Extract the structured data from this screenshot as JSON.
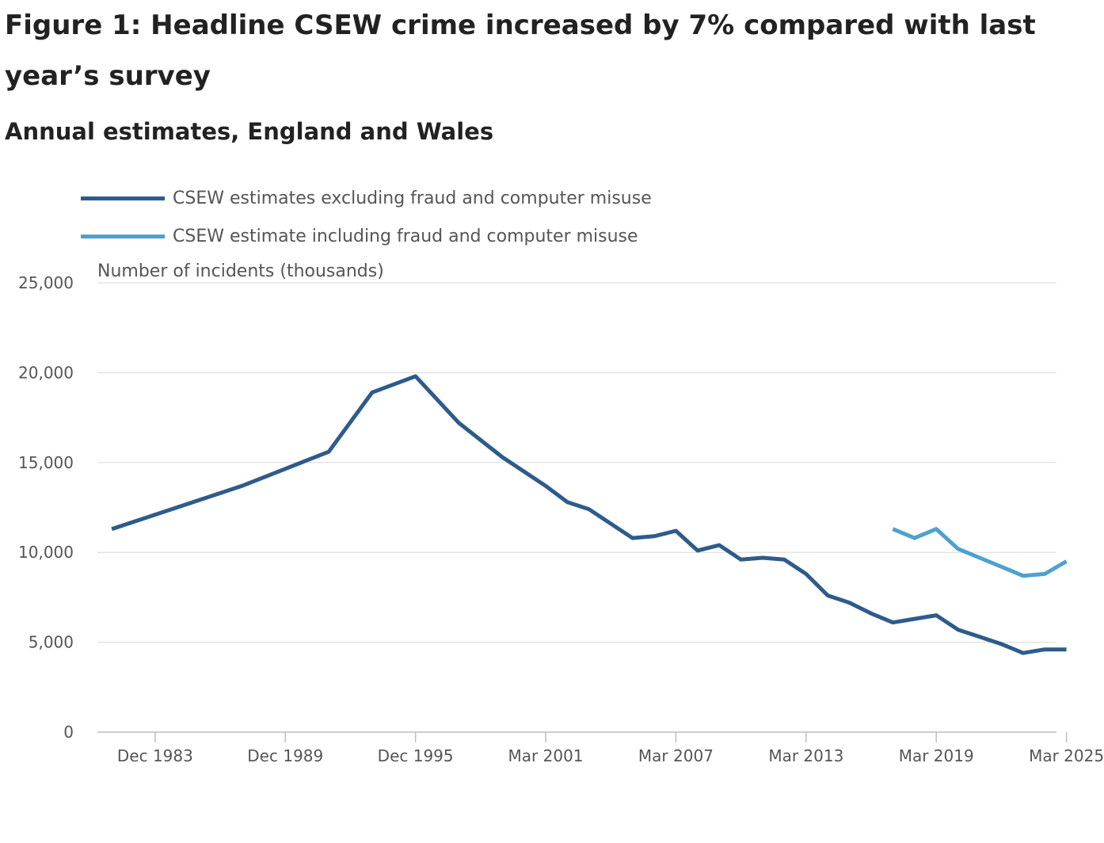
{
  "header": {
    "title": "Figure 1: Headline CSEW crime increased by 7% compared with last year’s survey",
    "subtitle": "Annual estimates, England and Wales"
  },
  "legend": [
    {
      "label": "CSEW estimates excluding fraud and computer misuse",
      "color": "#2e5b8a"
    },
    {
      "label": "CSEW estimate including fraud and computer misuse",
      "color": "#4ea1cf"
    }
  ],
  "chart_data": {
    "type": "line",
    "title": "Figure 1: Headline CSEW crime increased by 7% compared with last year’s survey",
    "subtitle": "Annual estimates, England and Wales",
    "xlabel": "",
    "ylabel": "Number of incidents (thousands)",
    "ylim": [
      0,
      25000
    ],
    "yticks": [
      0,
      5000,
      10000,
      15000,
      20000,
      25000
    ],
    "ytick_labels": [
      "0",
      "5,000",
      "10,000",
      "15,000",
      "20,000",
      "25,000"
    ],
    "xlim": [
      1981.3,
      2025.5
    ],
    "xticks": [
      {
        "label": "Dec 1983",
        "x": 1983.96
      },
      {
        "label": "Dec 1989",
        "x": 1989.96
      },
      {
        "label": "Dec 1995",
        "x": 1995.96
      },
      {
        "label": "Mar 2001",
        "x": 2001.96
      },
      {
        "label": "Mar 2007",
        "x": 2007.96
      },
      {
        "label": "Mar 2013",
        "x": 2013.96
      },
      {
        "label": "Mar 2019",
        "x": 2019.96
      },
      {
        "label": "Mar 2025",
        "x": 2025.96
      }
    ],
    "grid": true,
    "legend_position": "top-left",
    "series": [
      {
        "name": "CSEW estimates excluding fraud and computer misuse",
        "color": "#2e5b8a",
        "points": [
          {
            "x": 1981.96,
            "y": 11300
          },
          {
            "x": 1983.96,
            "y": 12100
          },
          {
            "x": 1987.96,
            "y": 13700
          },
          {
            "x": 1991.96,
            "y": 15600
          },
          {
            "x": 1993.96,
            "y": 18900
          },
          {
            "x": 1995.96,
            "y": 19800
          },
          {
            "x": 1997.96,
            "y": 17200
          },
          {
            "x": 1999.96,
            "y": 15300
          },
          {
            "x": 2001.96,
            "y": 13700
          },
          {
            "x": 2002.96,
            "y": 12800
          },
          {
            "x": 2003.96,
            "y": 12400
          },
          {
            "x": 2004.96,
            "y": 11600
          },
          {
            "x": 2005.96,
            "y": 10800
          },
          {
            "x": 2006.96,
            "y": 10900
          },
          {
            "x": 2007.96,
            "y": 11200
          },
          {
            "x": 2008.96,
            "y": 10100
          },
          {
            "x": 2009.96,
            "y": 10400
          },
          {
            "x": 2010.96,
            "y": 9600
          },
          {
            "x": 2011.96,
            "y": 9700
          },
          {
            "x": 2012.96,
            "y": 9600
          },
          {
            "x": 2013.96,
            "y": 8800
          },
          {
            "x": 2014.96,
            "y": 7600
          },
          {
            "x": 2015.96,
            "y": 7200
          },
          {
            "x": 2016.96,
            "y": 6600
          },
          {
            "x": 2017.96,
            "y": 6100
          },
          {
            "x": 2018.96,
            "y": 6300
          },
          {
            "x": 2019.96,
            "y": 6500
          },
          {
            "x": 2020.96,
            "y": 5700
          },
          {
            "x": 2021.96,
            "y": 5300
          },
          {
            "x": 2022.96,
            "y": 4900
          },
          {
            "x": 2023.96,
            "y": 4400
          },
          {
            "x": 2024.96,
            "y": 4600
          },
          {
            "x": 2025.96,
            "y": 4600
          }
        ]
      },
      {
        "name": "CSEW estimate including fraud and computer misuse",
        "color": "#4ea1cf",
        "points": [
          {
            "x": 2017.96,
            "y": 11300
          },
          {
            "x": 2018.96,
            "y": 10800
          },
          {
            "x": 2019.96,
            "y": 11300
          },
          {
            "x": 2020.96,
            "y": 10200
          },
          {
            "x": 2021.96,
            "y": 9700
          },
          {
            "x": 2022.96,
            "y": 9200
          },
          {
            "x": 2023.96,
            "y": 8700
          },
          {
            "x": 2024.96,
            "y": 8800
          },
          {
            "x": 2025.96,
            "y": 9500
          }
        ]
      }
    ]
  }
}
